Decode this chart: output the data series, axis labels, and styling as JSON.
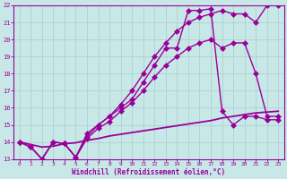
{
  "xlabel": "Windchill (Refroidissement éolien,°C)",
  "xlim": [
    -0.5,
    23.5
  ],
  "ylim": [
    13,
    22
  ],
  "xticks": [
    0,
    1,
    2,
    3,
    4,
    5,
    6,
    7,
    8,
    9,
    10,
    11,
    12,
    13,
    14,
    15,
    16,
    17,
    18,
    19,
    20,
    21,
    22,
    23
  ],
  "yticks": [
    13,
    14,
    15,
    16,
    17,
    18,
    19,
    20,
    21,
    22
  ],
  "bg_color": "#c8e8e8",
  "line_color": "#990099",
  "grid_color": "#aacccc",
  "series": [
    {
      "x": [
        0,
        1,
        2,
        3,
        4,
        5,
        6,
        7,
        8,
        9,
        10,
        11,
        12,
        13,
        14,
        15,
        16,
        17,
        18,
        19,
        20,
        21,
        22,
        23
      ],
      "y": [
        14.0,
        13.7,
        13.0,
        14.0,
        13.9,
        13.1,
        14.5,
        15.0,
        15.5,
        16.0,
        16.5,
        17.5,
        18.5,
        19.5,
        19.5,
        21.7,
        21.7,
        21.8,
        15.8,
        15.0,
        15.5,
        15.5,
        15.3,
        15.3
      ],
      "marker": "D",
      "markersize": 3,
      "linewidth": 1.0
    },
    {
      "x": [
        0,
        1,
        2,
        3,
        4,
        5,
        6,
        7,
        8,
        9,
        10,
        11,
        12,
        13,
        14,
        15,
        16,
        17,
        18,
        19,
        20,
        21,
        22,
        23
      ],
      "y": [
        14.0,
        13.7,
        13.0,
        14.0,
        13.9,
        13.1,
        14.3,
        15.0,
        15.5,
        16.2,
        17.0,
        18.0,
        19.0,
        19.8,
        20.5,
        21.0,
        21.3,
        21.5,
        21.7,
        21.5,
        21.5,
        21.0,
        22.0,
        22.0
      ],
      "marker": "D",
      "markersize": 3,
      "linewidth": 1.0
    },
    {
      "x": [
        0,
        1,
        2,
        3,
        4,
        5,
        6,
        7,
        8,
        9,
        10,
        11,
        12,
        13,
        14,
        15,
        16,
        17,
        18,
        19,
        20,
        21,
        22,
        23
      ],
      "y": [
        14.0,
        13.7,
        13.0,
        14.0,
        13.9,
        13.1,
        14.2,
        14.8,
        15.2,
        15.8,
        16.3,
        17.0,
        17.8,
        18.5,
        19.0,
        19.5,
        19.8,
        20.0,
        19.5,
        19.8,
        19.8,
        18.0,
        15.5,
        15.5
      ],
      "marker": "D",
      "markersize": 3,
      "linewidth": 1.0
    },
    {
      "x": [
        0,
        1,
        2,
        3,
        4,
        5,
        6,
        7,
        8,
        9,
        10,
        11,
        12,
        13,
        14,
        15,
        16,
        17,
        18,
        19,
        20,
        21,
        22,
        23
      ],
      "y": [
        14.0,
        13.85,
        13.7,
        13.75,
        13.9,
        13.95,
        14.1,
        14.2,
        14.35,
        14.45,
        14.55,
        14.65,
        14.75,
        14.85,
        14.95,
        15.05,
        15.15,
        15.25,
        15.4,
        15.5,
        15.6,
        15.7,
        15.75,
        15.8
      ],
      "marker": null,
      "markersize": 0,
      "linewidth": 1.3
    }
  ]
}
